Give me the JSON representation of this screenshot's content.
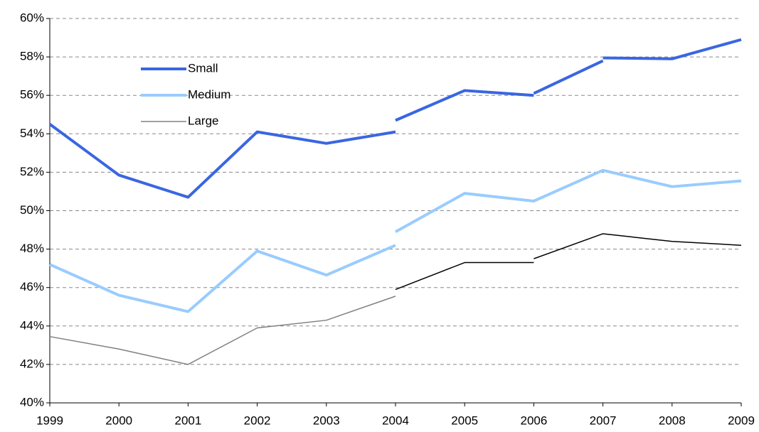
{
  "chart_data": {
    "type": "line",
    "categories": [
      "1999",
      "2000",
      "2001",
      "2002",
      "2003",
      "2004",
      "2005",
      "2006",
      "2007",
      "2008",
      "2009"
    ],
    "series": [
      {
        "name": "Small",
        "color": "#3a66e0",
        "width": 4,
        "pieces": [
          [
            54.5,
            51.85,
            50.7,
            54.1,
            53.5,
            54.1,
            null,
            null,
            null,
            null,
            null
          ],
          [
            null,
            null,
            null,
            null,
            null,
            54.7,
            56.25,
            56.0,
            null,
            null,
            null
          ],
          [
            null,
            null,
            null,
            null,
            null,
            null,
            null,
            56.1,
            57.8,
            null,
            null
          ],
          [
            null,
            null,
            null,
            null,
            null,
            null,
            null,
            null,
            57.95,
            57.9,
            58.9
          ]
        ]
      },
      {
        "name": "Medium",
        "color": "#99ccff",
        "width": 4,
        "pieces": [
          [
            47.2,
            45.6,
            44.75,
            47.9,
            46.65,
            48.2,
            null,
            null,
            null,
            null,
            null
          ],
          [
            null,
            null,
            null,
            null,
            null,
            48.9,
            50.9,
            50.5,
            52.1,
            51.25,
            51.55
          ]
        ]
      },
      {
        "name": "Large",
        "color": "#808080",
        "width": 1.5,
        "piece_colors": [
          "#808080",
          "#000000",
          "#000000"
        ],
        "pieces": [
          [
            43.45,
            42.8,
            42.0,
            43.9,
            44.3,
            45.55,
            null,
            null,
            null,
            null,
            null
          ],
          [
            null,
            null,
            null,
            null,
            null,
            45.9,
            47.3,
            47.3,
            null,
            null,
            null
          ],
          [
            null,
            null,
            null,
            null,
            null,
            null,
            null,
            47.5,
            48.8,
            48.4,
            48.2
          ]
        ]
      }
    ],
    "ylim": [
      40,
      60
    ],
    "yticks": [
      {
        "value": 40,
        "label": "40%"
      },
      {
        "value": 42,
        "label": "42%"
      },
      {
        "value": 44,
        "label": "44%"
      },
      {
        "value": 46,
        "label": "46%"
      },
      {
        "value": 48,
        "label": "48%"
      },
      {
        "value": 50,
        "label": "50%"
      },
      {
        "value": 52,
        "label": "52%"
      },
      {
        "value": 54,
        "label": "54%"
      },
      {
        "value": 56,
        "label": "56%"
      },
      {
        "value": 58,
        "label": "58%"
      },
      {
        "value": 60,
        "label": "60%"
      }
    ],
    "grid": true,
    "legend": "upper-left"
  }
}
